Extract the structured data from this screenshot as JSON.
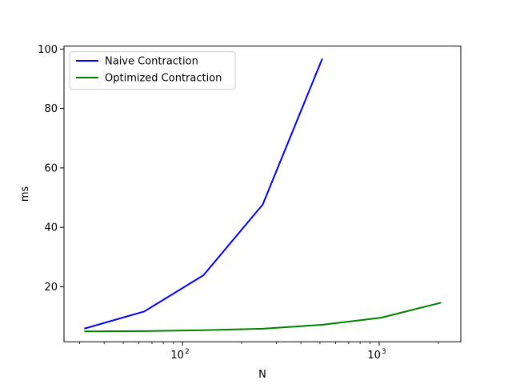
{
  "chart_data": {
    "type": "line",
    "title": "",
    "xlabel": "N",
    "ylabel": "ms",
    "x_scale": "log",
    "xlim": [
      25,
      2600
    ],
    "ylim": [
      1.5,
      101
    ],
    "x_ticks": [
      {
        "value": 100,
        "base": "10",
        "exp": "2"
      },
      {
        "value": 1000,
        "base": "10",
        "exp": "3"
      }
    ],
    "y_ticks": [
      {
        "value": 20,
        "label": "20"
      },
      {
        "value": 40,
        "label": "40"
      },
      {
        "value": 60,
        "label": "60"
      },
      {
        "value": 80,
        "label": "80"
      },
      {
        "value": 100,
        "label": "100"
      }
    ],
    "grid": false,
    "legend_position": "top-left",
    "series": [
      {
        "name": "Naive Contraction",
        "color": "#0000ff",
        "x": [
          32,
          64,
          128,
          256,
          512
        ],
        "y": [
          6.0,
          11.7,
          23.9,
          47.7,
          96.5
        ]
      },
      {
        "name": "Optimized Contraction",
        "color": "#008000",
        "x": [
          32,
          64,
          128,
          256,
          512,
          1024,
          2048
        ],
        "y": [
          5.0,
          5.1,
          5.4,
          5.9,
          7.2,
          9.6,
          14.6
        ]
      }
    ]
  }
}
